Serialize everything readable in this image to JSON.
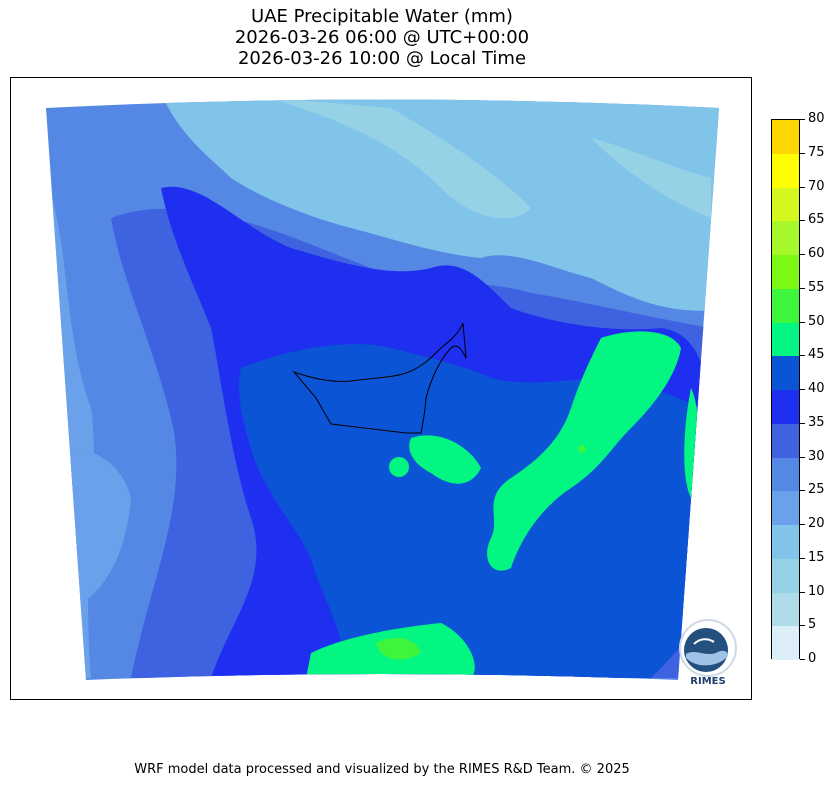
{
  "title": {
    "line1": "UAE Precipitable Water (mm)",
    "line2": "2026-03-26 06:00 @ UTC+00:00",
    "line3": "2026-03-26 10:00 @ Local Time"
  },
  "colorbar": {
    "levels": [
      {
        "value": "0",
        "color": "#dceef7"
      },
      {
        "value": "5",
        "color": "#b0dbe8"
      },
      {
        "value": "10",
        "color": "#96d2e6"
      },
      {
        "value": "15",
        "color": "#80c4ea"
      },
      {
        "value": "20",
        "color": "#6ba1ea"
      },
      {
        "value": "25",
        "color": "#5488e4"
      },
      {
        "value": "30",
        "color": "#3e62e0"
      },
      {
        "value": "35",
        "color": "#1f2ff0"
      },
      {
        "value": "40",
        "color": "#0b54d6"
      },
      {
        "value": "45",
        "color": "#03f582"
      },
      {
        "value": "50",
        "color": "#3df53c"
      },
      {
        "value": "55",
        "color": "#7cf815"
      },
      {
        "value": "60",
        "color": "#a6f82a"
      },
      {
        "value": "65",
        "color": "#d4f71e"
      },
      {
        "value": "70",
        "color": "#ffff00"
      },
      {
        "value": "75",
        "color": "#ffd700"
      }
    ],
    "max_label": "80"
  },
  "logo": {
    "text": "RIMES"
  },
  "footer": "WRF model data processed and visualized by the RIMES R&D Team. © 2025"
}
